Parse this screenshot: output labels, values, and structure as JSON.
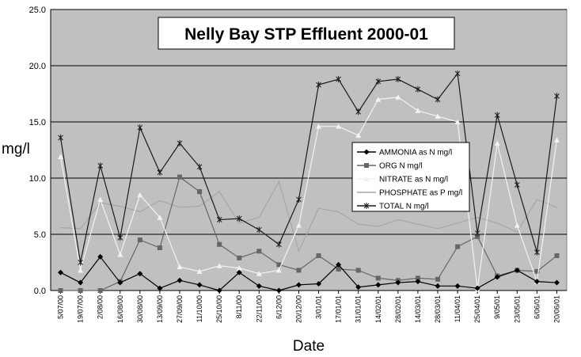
{
  "chart_data": {
    "type": "line",
    "title": "Nelly Bay STP Effluent 2000-01",
    "xlabel": "Date",
    "ylabel": "mg/l",
    "ylim": [
      0,
      25
    ],
    "yticks": [
      "0.0",
      "5.0",
      "10.0",
      "15.0",
      "20.0",
      "25.0"
    ],
    "grid": true,
    "legend_position": "right",
    "colors": {
      "plot_bg": "#c0c0c0",
      "gridline": "#000000",
      "AMMONIA as N mg/l": "#000000",
      "ORG N mg/l": "#666666",
      "NITRATE as N mg/l": "#f2f2f2",
      "PHOSPHATE as P mg/l": "#a6a6a6",
      "TOTAL N mg/l": "#1a1a1a"
    },
    "categories": [
      "5/07/00",
      "19/07/00",
      "2/08/00",
      "16/08/00",
      "30/08/00",
      "13/09/00",
      "27/09/00",
      "11/10/00",
      "25/10/00",
      "8/11/00",
      "22/11/00",
      "6/12/00",
      "20/12/00",
      "3/01/01",
      "17/01/01",
      "31/01/01",
      "14/02/01",
      "28/02/01",
      "14/03/01",
      "28/03/01",
      "11/04/01",
      "25/04/01",
      "9/05/01",
      "23/05/01",
      "6/06/01",
      "20/06/01"
    ],
    "series": [
      {
        "name": "AMMONIA as N mg/l",
        "marker": "diamond",
        "values": [
          1.6,
          0.7,
          3.0,
          0.7,
          1.5,
          0.2,
          0.9,
          0.5,
          0.0,
          1.6,
          0.4,
          0.0,
          0.5,
          0.6,
          2.3,
          0.3,
          0.5,
          0.7,
          0.8,
          0.4,
          0.4,
          0.2,
          1.2,
          1.8,
          0.8,
          0.7
        ]
      },
      {
        "name": "ORG N mg/l",
        "marker": "square",
        "values": [
          0.0,
          0.0,
          0.0,
          0.8,
          4.5,
          3.8,
          10.1,
          8.8,
          4.1,
          2.9,
          3.5,
          2.3,
          1.8,
          3.1,
          1.9,
          1.8,
          1.1,
          0.9,
          1.1,
          1.0,
          3.9,
          4.8,
          1.3,
          1.8,
          1.7,
          3.1
        ]
      },
      {
        "name": "NITRATE as N mg/l",
        "marker": "triangle",
        "values": [
          11.9,
          1.8,
          8.1,
          3.2,
          8.5,
          6.5,
          2.1,
          1.7,
          2.2,
          2.0,
          1.5,
          1.8,
          5.8,
          14.6,
          14.6,
          13.8,
          17.0,
          17.2,
          16.0,
          15.5,
          15.0,
          0.1,
          13.1,
          5.8,
          0.8,
          13.4
        ]
      },
      {
        "name": "PHOSPHATE as P mg/l",
        "marker": "none",
        "values": [
          5.6,
          5.5,
          7.8,
          7.5,
          7.0,
          8.0,
          7.4,
          7.5,
          8.8,
          6.0,
          6.5,
          9.7,
          3.5,
          7.3,
          7.0,
          5.9,
          5.7,
          6.3,
          5.9,
          5.5,
          6.0,
          6.5,
          6.0,
          5.2,
          8.1,
          7.4
        ]
      },
      {
        "name": "TOTAL N mg/l",
        "marker": "star",
        "values": [
          13.6,
          2.5,
          11.1,
          4.7,
          14.5,
          10.5,
          13.1,
          11.0,
          6.3,
          6.4,
          5.4,
          4.1,
          8.1,
          18.3,
          18.8,
          15.9,
          18.6,
          18.8,
          17.9,
          17.0,
          19.3,
          5.1,
          15.6,
          9.4,
          3.4,
          17.3
        ]
      }
    ]
  }
}
